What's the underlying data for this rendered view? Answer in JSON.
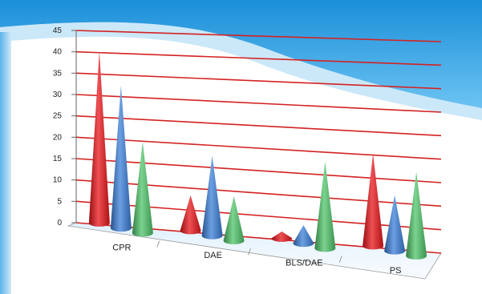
{
  "chart_data": {
    "type": "bar",
    "subtype": "3d-cone",
    "categories": [
      "CPR",
      "DAE",
      "BLS/DAE",
      "PS"
    ],
    "series": [
      {
        "values": [
          40,
          8,
          1.5,
          20
        ]
      },
      {
        "values": [
          33,
          18,
          4,
          12
        ]
      },
      {
        "values": [
          21,
          10,
          19,
          18
        ]
      }
    ],
    "ylim": [
      0,
      45
    ],
    "yticks": [
      "0",
      "5",
      "10",
      "15",
      "20",
      "25",
      "30",
      "35",
      "40",
      "45"
    ],
    "grid": true,
    "legend": "none"
  },
  "colors": {
    "series": [
      "#e8151b",
      "#3b7fd8",
      "#4fc46a"
    ],
    "gridline": "#d42222",
    "banner": "#2f9fe0"
  }
}
